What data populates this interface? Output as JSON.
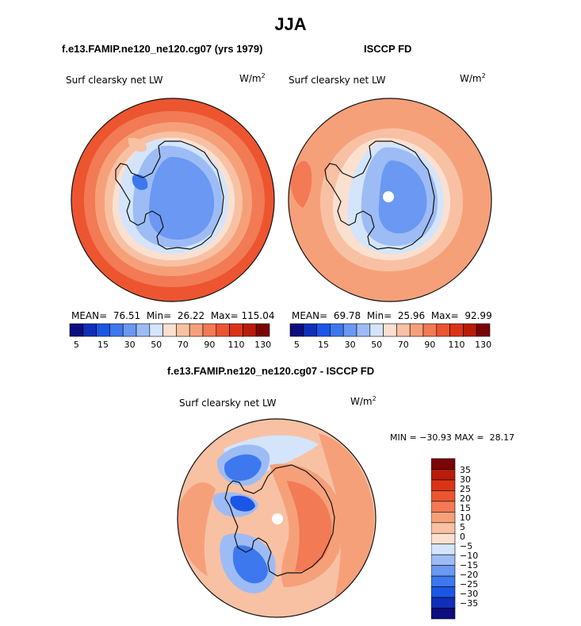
{
  "page": {
    "title": "JJA"
  },
  "panels": [
    {
      "id": "model",
      "case_title": "f.e13.FAMIP.ne120_ne120.cg07 (yrs 1979)",
      "variable": "Surf clearsky net LW",
      "units": "W/m",
      "units_exp": "2",
      "stats": {
        "mean_label": "MEAN=",
        "mean": "76.51",
        "min_label": "Min=",
        "min": "26.22",
        "max_label": "Max=",
        "max": "115.04"
      },
      "colorbar_ticks": [
        "5",
        "15",
        "30",
        "50",
        "70",
        "90",
        "110",
        "130"
      ]
    },
    {
      "id": "obs",
      "case_title": "ISCCP FD",
      "variable": "Surf clearsky net LW",
      "units": "W/m",
      "units_exp": "2",
      "stats": {
        "mean_label": "MEAN=",
        "mean": "69.78",
        "min_label": "Min=",
        "min": "25.96",
        "max_label": "Max=",
        "max": "92.99"
      },
      "colorbar_ticks": [
        "5",
        "15",
        "30",
        "50",
        "70",
        "90",
        "110",
        "130"
      ]
    },
    {
      "id": "diff",
      "case_title": "f.e13.FAMIP.ne120_ne120.cg07 - ISCCP FD",
      "variable": "Surf clearsky net LW",
      "units": "W/m",
      "units_exp": "2",
      "stats_text": "MIN = −30.93 MAX =  28.17",
      "colorbar_ticks": [
        "35",
        "30",
        "25",
        "20",
        "15",
        "10",
        "5",
        "0",
        "−5",
        "−10",
        "−15",
        "−20",
        "−25",
        "−30",
        "−35"
      ]
    }
  ],
  "colors": {
    "abs_scale": [
      "#0d0d7f",
      "#0f2fb8",
      "#1c56e6",
      "#3d78ee",
      "#6a98f2",
      "#9dbcf5",
      "#d4e5fb",
      "#fbe0d0",
      "#f8c1a4",
      "#f6a07a",
      "#f27a55",
      "#ec5530",
      "#da3417",
      "#b81c0a",
      "#7a0505"
    ],
    "diff_scale": [
      "#7a0505",
      "#b81c0a",
      "#da3417",
      "#ec5530",
      "#f27a55",
      "#f6a07a",
      "#f8c1a4",
      "#fbe0d0",
      "#d4e5fb",
      "#9dbcf5",
      "#6a98f2",
      "#3d78ee",
      "#1c56e6",
      "#0f2fb8",
      "#0d0d7f"
    ],
    "coastline": "#111111"
  }
}
